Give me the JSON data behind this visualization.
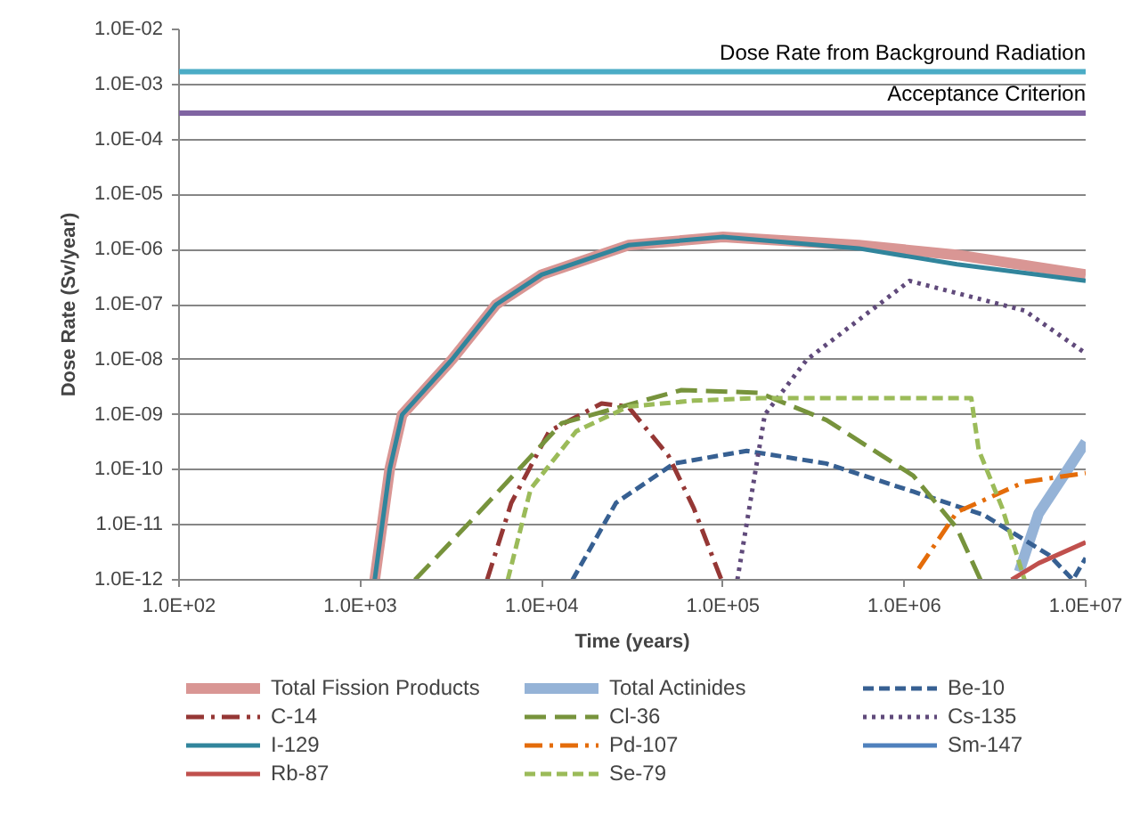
{
  "chart_data": {
    "type": "line",
    "xlabel": "Time (years)",
    "ylabel": "Dose Rate (Sv/year)",
    "log": "xy",
    "xlim": [
      100,
      10000000
    ],
    "xticks": [
      {
        "value": 100,
        "label": "1.0E+02"
      },
      {
        "value": 1000,
        "label": "1.0E+03"
      },
      {
        "value": 10000,
        "label": "1.0E+04"
      },
      {
        "value": 100000,
        "label": "1.0E+05"
      },
      {
        "value": 1000000,
        "label": "1.0E+06"
      },
      {
        "value": 10000000,
        "label": "1.0E+07"
      }
    ],
    "ylim": [
      1e-12,
      0.01
    ],
    "yticks": [
      {
        "value": 1e-12,
        "label": "1.0E-12"
      },
      {
        "value": 1e-11,
        "label": "1.0E-11"
      },
      {
        "value": 1e-10,
        "label": "1.0E-10"
      },
      {
        "value": 1e-09,
        "label": "1.0E-09"
      },
      {
        "value": 1e-08,
        "label": "1.0E-08"
      },
      {
        "value": 1e-07,
        "label": "1.0E-07"
      },
      {
        "value": 1e-06,
        "label": "1.0E-06"
      },
      {
        "value": 1e-05,
        "label": "1.0E-05"
      },
      {
        "value": 0.0001,
        "label": "1.0E-04"
      },
      {
        "value": 0.001,
        "label": "1.0E-03"
      },
      {
        "value": 0.01,
        "label": "1.0E-02"
      }
    ],
    "grid": "y",
    "legend": "bottom",
    "ref_lines": [
      {
        "axis": "y",
        "value": 0.0017,
        "label": "Dose Rate from Background Radiation",
        "color": "#4bacc6"
      },
      {
        "axis": "y",
        "value": 0.0003,
        "label": "Acceptance Criterion",
        "color": "#8064a2"
      }
    ],
    "series": [
      {
        "name": "Total Fission Products",
        "color": "#d99694",
        "line_style": "solid",
        "x": [
          1200,
          1450,
          1700,
          3200,
          5600,
          10000,
          30000,
          100000,
          560000,
          1950000,
          10000000
        ],
        "values": [
          1e-12,
          1e-10,
          1e-09,
          1e-08,
          1e-07,
          3.5e-07,
          1.2e-06,
          1.7e-06,
          1.2e-06,
          8e-07,
          3.5e-07
        ]
      },
      {
        "name": "Total Actinides",
        "color": "#95b3d7",
        "line_style": "solid",
        "x": [
          4300000,
          5500000,
          7600000,
          10000000
        ],
        "values": [
          1.4e-12,
          1.6e-11,
          8e-11,
          3.2e-10
        ]
      },
      {
        "name": "Be-10",
        "color": "#376092",
        "line_style": "dashed",
        "x": [
          14800,
          25700,
          53700,
          135000,
          370000,
          1120000,
          2750000,
          6300000,
          8500000,
          10000000
        ],
        "values": [
          1e-12,
          2.5e-11,
          1.3e-10,
          2.2e-10,
          1.3e-10,
          4e-11,
          1.5e-11,
          2.8e-12,
          1e-12,
          2.5e-12
        ]
      },
      {
        "name": "C-14",
        "color": "#953735",
        "line_style": "dashdot",
        "x": [
          5000,
          6800,
          11000,
          21400,
          30000,
          50000,
          69000,
          98000
        ],
        "values": [
          1e-12,
          2.5e-11,
          5e-10,
          1.6e-09,
          1.4e-09,
          1.8e-10,
          2e-11,
          1e-12
        ]
      },
      {
        "name": "Cl-36",
        "color": "#77933c",
        "line_style": "longdash",
        "x": [
          2000,
          4000,
          12900,
          59000,
          158000,
          372000,
          1120000,
          1950000,
          2630000
        ],
        "values": [
          1e-12,
          1.1e-11,
          7e-10,
          2.8e-09,
          2.5e-09,
          8e-10,
          7.8e-11,
          8.7e-12,
          1e-12
        ]
      },
      {
        "name": "Cs-135",
        "color": "#604a7b",
        "line_style": "dotted",
        "x": [
          120000,
          170000,
          290000,
          1070000,
          4600000,
          10000000
        ],
        "values": [
          1e-12,
          1e-09,
          1e-08,
          2.7e-07,
          7.8e-08,
          1.3e-08
        ]
      },
      {
        "name": "I-129",
        "color": "#31859c",
        "line_style": "solid",
        "x": [
          1200,
          1450,
          1700,
          3200,
          5600,
          10000,
          30000,
          100000,
          560000,
          1950000,
          10000000
        ],
        "values": [
          1e-12,
          1e-10,
          1e-09,
          1e-08,
          1e-07,
          3.5e-07,
          1.2e-06,
          1.7e-06,
          1.05e-06,
          5.4e-07,
          2.7e-07
        ]
      },
      {
        "name": "Pd-107",
        "color": "#e46c0a",
        "line_style": "dashdot",
        "x": [
          1200000,
          1950000,
          4600000,
          10000000
        ],
        "values": [
          1.6e-12,
          1.7e-11,
          6e-11,
          8.7e-11
        ]
      },
      {
        "name": "Sm-147",
        "color": "#4f81bd",
        "line_style": "solid"
      },
      {
        "name": "Rb-87",
        "color": "#c0504d",
        "line_style": "solid",
        "x": [
          3900000,
          5500000,
          10000000
        ],
        "values": [
          1e-12,
          2e-12,
          4.8e-12
        ]
      },
      {
        "name": "Se-79",
        "color": "#9bbb59",
        "line_style": "dashed",
        "x": [
          6500,
          8700,
          15500,
          30000,
          69000,
          158000,
          2340000,
          2570000,
          3470000,
          4600000
        ],
        "values": [
          1e-12,
          4.5e-11,
          5e-10,
          1.4e-09,
          1.8e-09,
          2e-09,
          2e-09,
          2.3e-10,
          2e-11,
          1e-12
        ]
      }
    ]
  }
}
